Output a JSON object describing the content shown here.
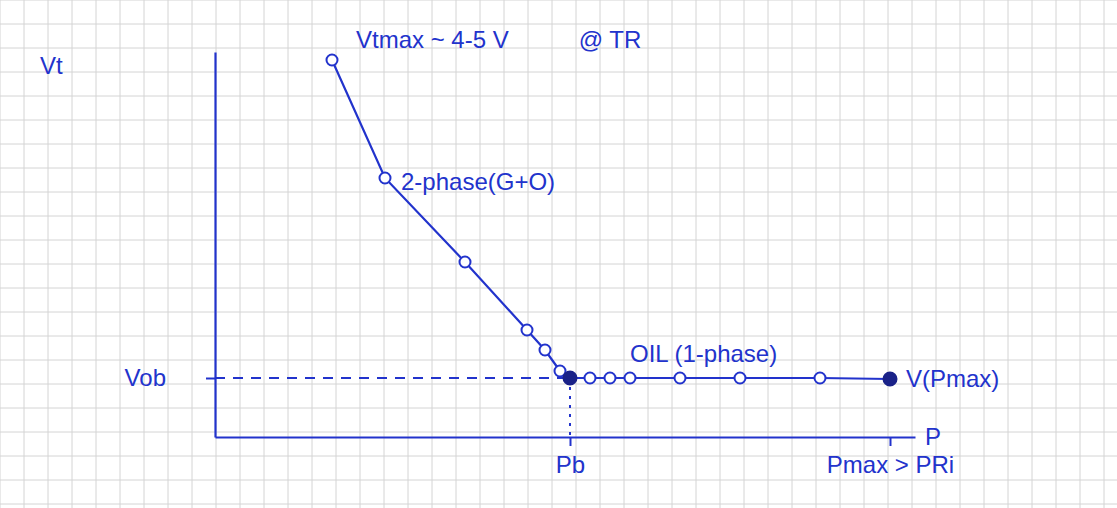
{
  "chart_data": {
    "type": "line",
    "color": "#2233cc",
    "x_label": "P",
    "y_label": "Vt",
    "xlim": [
      0,
      700
    ],
    "ylim": [
      0,
      385
    ],
    "xticks": [
      {
        "value": 355,
        "label": "Pb"
      },
      {
        "value": 675,
        "label": "Pmax > PRi"
      }
    ],
    "yticks": [
      {
        "value": 59,
        "label": "Vob"
      }
    ],
    "annotations": [
      "Vtmax ~ 4-5 V",
      "@ TR",
      "V(Pmax)"
    ],
    "series": [
      {
        "name": "2-phase(G+O)",
        "color": "#2233cc",
        "marker": "circle",
        "line_style": "solid",
        "x": [
          117,
          170,
          250,
          312,
          330,
          345
        ],
        "values": [
          377,
          259,
          175,
          107,
          87,
          66
        ]
      },
      {
        "name": "OIL (1-phase)",
        "color": "#2233cc",
        "marker": "circle",
        "line_style": "solid",
        "x": [
          355,
          375,
          395,
          415,
          465,
          525,
          605,
          675
        ],
        "values": [
          59,
          59,
          59,
          59,
          59,
          59,
          59,
          58
        ]
      },
      {
        "color": "#1a2288",
        "marker": "dot",
        "line_style": "none",
        "x": [
          355,
          675
        ],
        "values": [
          59,
          58
        ]
      }
    ]
  }
}
